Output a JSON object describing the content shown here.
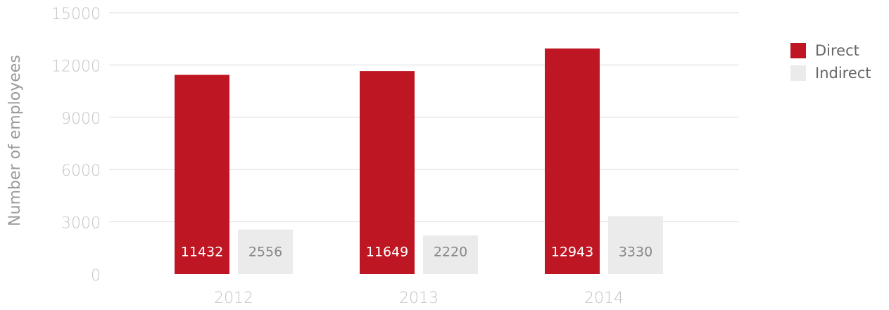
{
  "chart_data": {
    "type": "bar",
    "y_label": "Number of employees",
    "categories": [
      "2012",
      "2013",
      "2014"
    ],
    "series": [
      {
        "name": "Direct",
        "color": "#be1622",
        "values": [
          11432,
          11649,
          12943
        ]
      },
      {
        "name": "Indirect",
        "color": "#ebebeb",
        "values": [
          2556,
          2220,
          3330
        ]
      }
    ],
    "ylim": [
      0,
      15000
    ],
    "yticks": [
      0,
      3000,
      6000,
      9000,
      12000,
      15000
    ],
    "grid": true,
    "legend": "right"
  }
}
